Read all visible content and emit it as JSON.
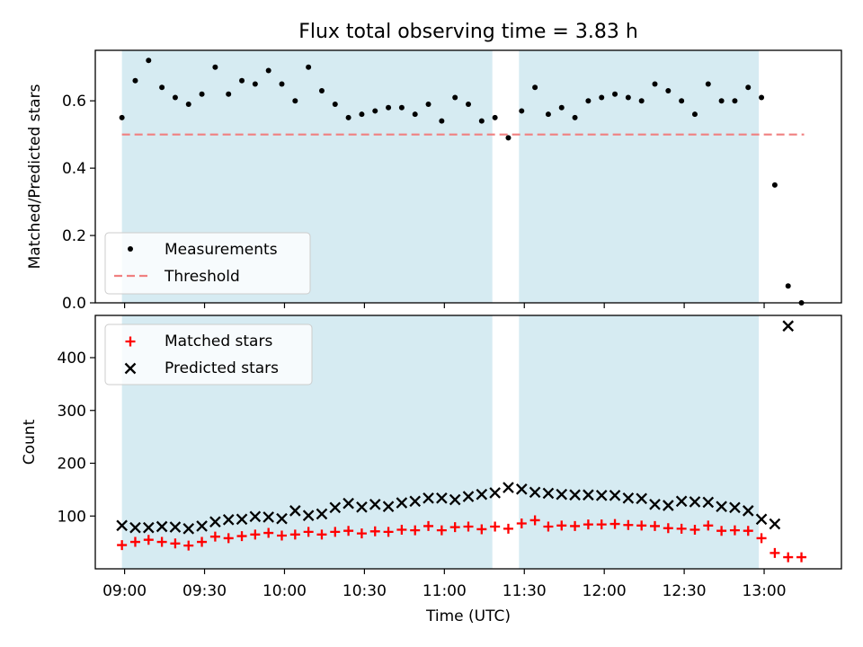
{
  "title": "Flux total observing time = 3.83 h",
  "colors": {
    "band": "#add8e6",
    "threshold": "#f08080",
    "matched": "#ff0000",
    "predicted": "#000000",
    "measurement": "#000000"
  },
  "chart_data": [
    {
      "type": "scatter",
      "ylabel": "Matched/Predicted stars",
      "ylim": [
        0,
        0.75
      ],
      "yticks": [
        0.0,
        0.2,
        0.4,
        0.6
      ],
      "ytick_labels": [
        "0.0",
        "0.2",
        "0.4",
        "0.6"
      ],
      "grid": false,
      "legend_placement": "lower-left",
      "observing_windows": [
        [
          "08:59",
          "11:18"
        ],
        [
          "11:28",
          "12:58"
        ]
      ],
      "threshold": {
        "name": "Threshold",
        "value": 0.5,
        "x_range": [
          "08:59",
          "13:15"
        ]
      },
      "series": [
        {
          "name": "Measurements",
          "marker": "dot",
          "x": [
            "08:59",
            "09:04",
            "09:09",
            "09:14",
            "09:19",
            "09:24",
            "09:29",
            "09:34",
            "09:39",
            "09:44",
            "09:49",
            "09:54",
            "09:59",
            "10:04",
            "10:09",
            "10:14",
            "10:19",
            "10:24",
            "10:29",
            "10:34",
            "10:39",
            "10:44",
            "10:49",
            "10:54",
            "10:59",
            "11:04",
            "11:09",
            "11:14",
            "11:19",
            "11:24",
            "11:29",
            "11:34",
            "11:39",
            "11:44",
            "11:49",
            "11:54",
            "11:59",
            "12:04",
            "12:09",
            "12:14",
            "12:19",
            "12:24",
            "12:29",
            "12:34",
            "12:39",
            "12:44",
            "12:49",
            "12:54",
            "12:59",
            "13:04",
            "13:09",
            "13:14"
          ],
          "y": [
            0.55,
            0.66,
            0.72,
            0.64,
            0.61,
            0.59,
            0.62,
            0.7,
            0.62,
            0.66,
            0.65,
            0.69,
            0.65,
            0.6,
            0.7,
            0.63,
            0.59,
            0.55,
            0.56,
            0.57,
            0.58,
            0.58,
            0.56,
            0.59,
            0.54,
            0.61,
            0.59,
            0.54,
            0.55,
            0.49,
            0.57,
            0.64,
            0.56,
            0.58,
            0.55,
            0.6,
            0.61,
            0.62,
            0.61,
            0.6,
            0.65,
            0.63,
            0.6,
            0.56,
            0.65,
            0.6,
            0.6,
            0.64,
            0.61,
            0.35,
            0.05,
            0.0
          ]
        }
      ]
    },
    {
      "type": "scatter",
      "xlabel": "Time (UTC)",
      "ylabel": "Count",
      "ylim": [
        0,
        480
      ],
      "yticks": [
        100,
        200,
        300,
        400
      ],
      "ytick_labels": [
        "100",
        "200",
        "300",
        "400"
      ],
      "xticks": [
        "09:00",
        "09:30",
        "10:00",
        "10:30",
        "11:00",
        "11:30",
        "12:00",
        "12:30",
        "13:00"
      ],
      "xlim": [
        "08:49",
        "13:29"
      ],
      "grid": false,
      "legend_placement": "top-left",
      "observing_windows": [
        [
          "08:59",
          "11:18"
        ],
        [
          "11:28",
          "12:58"
        ]
      ],
      "series": [
        {
          "name": "Matched stars",
          "marker": "plus",
          "x": [
            "08:59",
            "09:04",
            "09:09",
            "09:14",
            "09:19",
            "09:24",
            "09:29",
            "09:34",
            "09:39",
            "09:44",
            "09:49",
            "09:54",
            "09:59",
            "10:04",
            "10:09",
            "10:14",
            "10:19",
            "10:24",
            "10:29",
            "10:34",
            "10:39",
            "10:44",
            "10:49",
            "10:54",
            "10:59",
            "11:04",
            "11:09",
            "11:14",
            "11:19",
            "11:24",
            "11:29",
            "11:34",
            "11:39",
            "11:44",
            "11:49",
            "11:54",
            "11:59",
            "12:04",
            "12:09",
            "12:14",
            "12:19",
            "12:24",
            "12:29",
            "12:34",
            "12:39",
            "12:44",
            "12:49",
            "12:54",
            "12:59",
            "13:04",
            "13:09",
            "13:14"
          ],
          "y": [
            45,
            51,
            55,
            51,
            48,
            44,
            51,
            61,
            58,
            62,
            65,
            68,
            63,
            65,
            70,
            65,
            70,
            72,
            67,
            71,
            70,
            74,
            73,
            81,
            73,
            79,
            80,
            75,
            80,
            76,
            86,
            92,
            80,
            82,
            81,
            84,
            84,
            85,
            83,
            82,
            81,
            77,
            76,
            74,
            82,
            72,
            73,
            72,
            58,
            30,
            22,
            22
          ]
        },
        {
          "name": "Predicted stars",
          "marker": "x",
          "x": [
            "08:59",
            "09:04",
            "09:09",
            "09:14",
            "09:19",
            "09:24",
            "09:29",
            "09:34",
            "09:39",
            "09:44",
            "09:49",
            "09:54",
            "09:59",
            "10:04",
            "10:09",
            "10:14",
            "10:19",
            "10:24",
            "10:29",
            "10:34",
            "10:39",
            "10:44",
            "10:49",
            "10:54",
            "10:59",
            "11:04",
            "11:09",
            "11:14",
            "11:19",
            "11:24",
            "11:29",
            "11:34",
            "11:39",
            "11:44",
            "11:49",
            "11:54",
            "11:59",
            "12:04",
            "12:09",
            "12:14",
            "12:19",
            "12:24",
            "12:29",
            "12:34",
            "12:39",
            "12:44",
            "12:49",
            "12:54",
            "12:59",
            "13:04",
            "13:09"
          ],
          "y": [
            82,
            78,
            78,
            80,
            79,
            76,
            81,
            89,
            93,
            94,
            99,
            98,
            95,
            110,
            101,
            104,
            116,
            124,
            117,
            122,
            118,
            125,
            128,
            134,
            134,
            131,
            137,
            141,
            144,
            154,
            151,
            145,
            143,
            141,
            140,
            140,
            139,
            139,
            134,
            133,
            122,
            120,
            128,
            127,
            126,
            118,
            116,
            110,
            94,
            85,
            460
          ]
        }
      ]
    }
  ]
}
